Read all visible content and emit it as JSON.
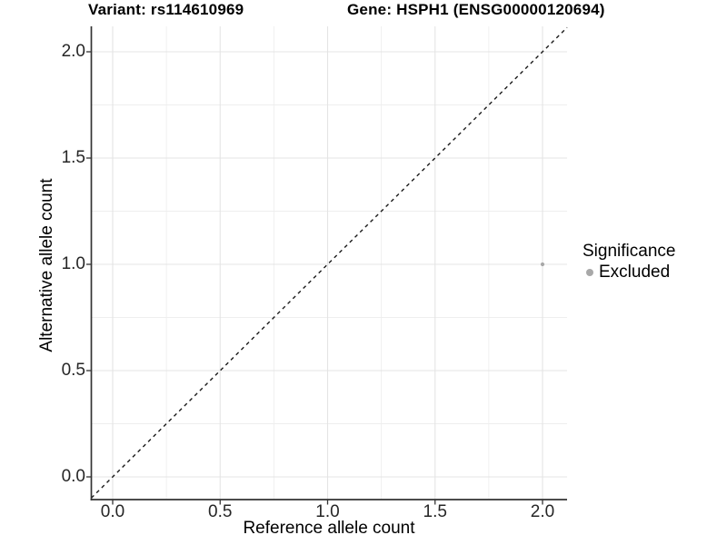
{
  "chart_data": {
    "type": "scatter",
    "title_left": "Variant: rs114610969",
    "title_right": "Gene: HSPH1 (ENSG00000120694)",
    "xlabel": "Reference allele count",
    "ylabel": "Alternative allele count",
    "xlim": [
      -0.1,
      2.115
    ],
    "ylim": [
      -0.105,
      2.12
    ],
    "x_ticks": {
      "values": [
        0,
        0.5,
        1,
        1.5,
        2
      ],
      "labels": [
        "0.0",
        "0.5",
        "1.0",
        "1.5",
        "2.0"
      ]
    },
    "y_ticks": {
      "values": [
        0,
        0.5,
        1,
        1.5,
        2
      ],
      "labels": [
        "0.0",
        "0.5",
        "1.0",
        "1.5",
        "2.0"
      ]
    },
    "minor_ticks": [
      0.25,
      0.75,
      1.25,
      1.75
    ],
    "grid": "major+minor",
    "reference_line": {
      "kind": "identity",
      "slope": 1,
      "intercept": 0,
      "style": "dashed"
    },
    "series": [
      {
        "name": "Excluded",
        "color": "#a8a8a8",
        "point_radius": 2.1,
        "points": [
          {
            "x": 2.0,
            "y": 1.0
          }
        ]
      }
    ],
    "legend": {
      "title": "Significance",
      "position": "right",
      "entries": [
        {
          "label": "Excluded",
          "color": "#a8a8a8"
        }
      ]
    }
  },
  "colors": {
    "background": "#ffffff",
    "grid_major": "#e4e4e4",
    "grid_minor": "#eeeeee",
    "axis": "#333333",
    "reference_line": "#1a1a1a",
    "tick_text": "#262626"
  }
}
